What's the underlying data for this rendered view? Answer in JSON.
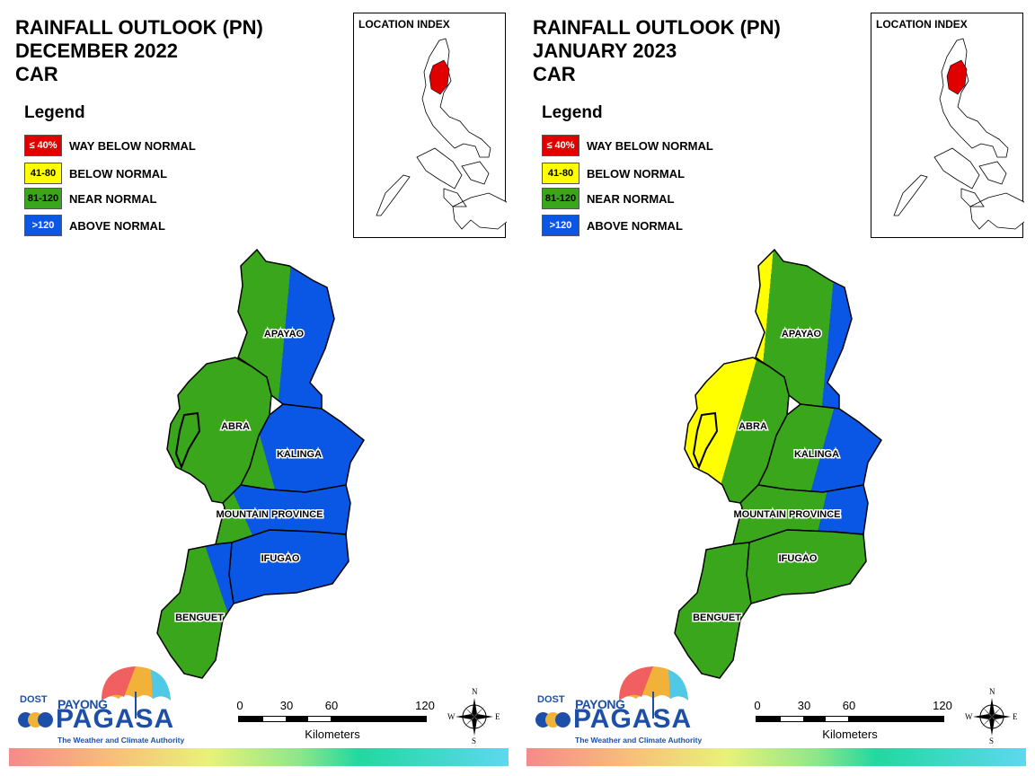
{
  "colors": {
    "way_below": "#e00000",
    "below": "#ffff00",
    "near": "#3aa61c",
    "above": "#0a57e6",
    "logo_blue": "#1e4fa8"
  },
  "legend": {
    "title": "Legend",
    "items": [
      {
        "range": "≤ 40%",
        "label": "WAY BELOW NORMAL",
        "color": "#e00000",
        "text_color": "#ffffff"
      },
      {
        "range": "41-80",
        "label": "BELOW NORMAL",
        "color": "#ffff00",
        "text_color": "#000000"
      },
      {
        "range": "81-120",
        "label": "NEAR NORMAL",
        "color": "#3aa61c",
        "text_color": "#000000"
      },
      {
        "range": ">120",
        "label": "ABOVE NORMAL",
        "color": "#0a57e6",
        "text_color": "#ffffff"
      }
    ]
  },
  "location_index": {
    "title": "LOCATION INDEX"
  },
  "provinces": {
    "apayao": "APAYAO",
    "abra": "ABRA",
    "kalinga": "KALINGA",
    "mountain_province": "MOUNTAIN PROVINCE",
    "ifugao": "IFUGAO",
    "benguet": "BENGUET"
  },
  "scale": {
    "ticks": [
      "0",
      "30",
      "60",
      "120"
    ],
    "unit": "Kilometers"
  },
  "compass": {
    "n": "N",
    "s": "S",
    "e": "E",
    "w": "W"
  },
  "logo": {
    "dost": "DOST",
    "payong": "PAYONG",
    "pagasa": "PAGASA",
    "tagline": "The Weather and Climate Authority"
  },
  "panels": [
    {
      "title_lines": [
        "RAINFALL OUTLOOK (PN)",
        "DECEMBER 2022",
        "CAR"
      ],
      "outlook": {
        "apayao": [
          "near",
          "above"
        ],
        "abra": [
          "near"
        ],
        "kalinga": [
          "near",
          "above"
        ],
        "mountain_province": [
          "near",
          "above"
        ],
        "ifugao": [
          "above"
        ],
        "benguet": [
          "near",
          "above"
        ]
      }
    },
    {
      "title_lines": [
        "RAINFALL OUTLOOK (PN)",
        "JANUARY 2023",
        "CAR"
      ],
      "outlook": {
        "apayao": [
          "below",
          "near",
          "above"
        ],
        "abra": [
          "below",
          "near"
        ],
        "kalinga": [
          "near",
          "above"
        ],
        "mountain_province": [
          "near",
          "above"
        ],
        "ifugao": [
          "near"
        ],
        "benguet": [
          "near"
        ]
      }
    }
  ]
}
